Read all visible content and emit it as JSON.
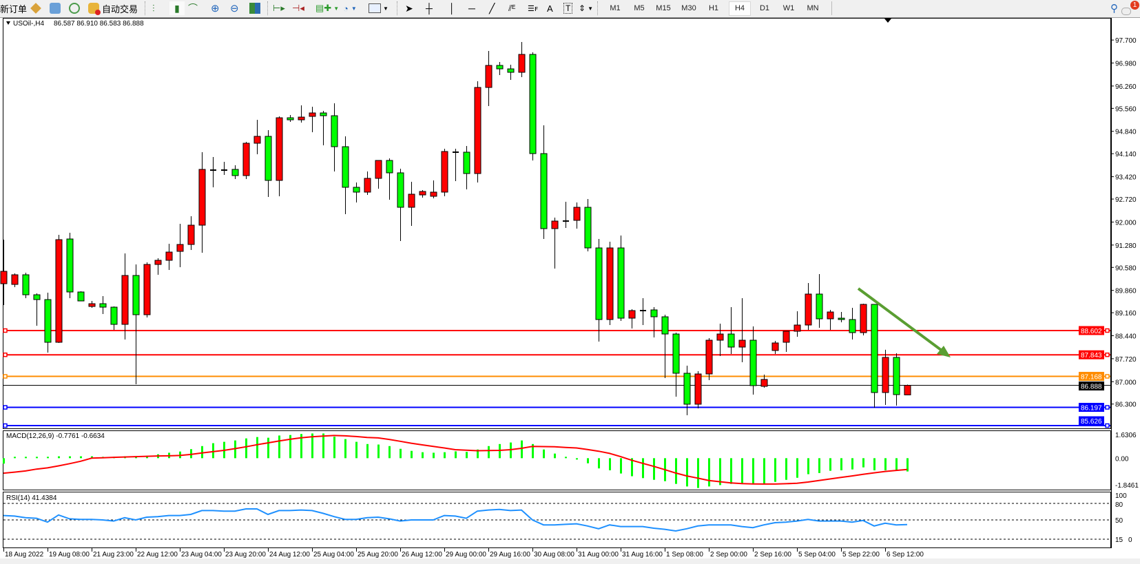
{
  "toolbar": {
    "new_order": "新订单",
    "auto_trading": "自动交易",
    "timeframes": [
      "M1",
      "M5",
      "M15",
      "M30",
      "H1",
      "H4",
      "D1",
      "W1",
      "MN"
    ],
    "active_timeframe": "H4",
    "notification_count": "1",
    "icons": [
      "new-order-icon",
      "market-watch-icon",
      "data-window-icon",
      "navigator-icon",
      "auto-trading-icon",
      "bar-chart-icon",
      "candlestick-icon",
      "line-chart-icon",
      "zoom-in-icon",
      "zoom-out-icon",
      "tile-windows-icon",
      "auto-scroll-icon",
      "chart-shift-icon",
      "templates-icon",
      "periods-icon",
      "indicators-icon",
      "cursor-icon",
      "crosshair-icon",
      "vertical-line-icon",
      "horizontal-line-icon",
      "trendline-icon",
      "fibonacci-expansion-icon",
      "fibonacci-retracement-icon",
      "text-icon",
      "text-label-icon",
      "arrows-icon",
      "search-icon",
      "notification-icon"
    ]
  },
  "chart_header": {
    "symbol": "USOil-,H4",
    "ohlc": "86.587 86.910 86.583 86.888"
  },
  "chart_data": {
    "type": "candlestick",
    "symbol": "USOil-",
    "timeframe": "H4",
    "colors": {
      "bull": "#ff0000",
      "bear": "#00ff00",
      "wick": "#000000"
    },
    "ylim": [
      85.626,
      97.7
    ],
    "price_ticks": [
      "97.700",
      "96.980",
      "96.260",
      "95.560",
      "94.840",
      "94.140",
      "93.420",
      "92.720",
      "92.000",
      "91.280",
      "90.580",
      "89.860",
      "89.160",
      "88.440",
      "87.720",
      "87.000",
      "86.300"
    ],
    "time_labels": [
      "18 Aug 2022",
      "19 Aug 08:00",
      "21 Aug 23:00",
      "22 Aug 12:00",
      "23 Aug 04:00",
      "23 Aug 20:00",
      "24 Aug 12:00",
      "25 Aug 04:00",
      "25 Aug 20:00",
      "26 Aug 12:00",
      "29 Aug 00:00",
      "29 Aug 16:00",
      "30 Aug 08:00",
      "31 Aug 00:00",
      "31 Aug 16:00",
      "1 Sep 08:00",
      "2 Sep 00:00",
      "2 Sep 16:00",
      "5 Sep 04:00",
      "5 Sep 22:00",
      "6 Sep 12:00"
    ],
    "time_label_every_n_bars": 4,
    "ohlc": [
      [
        90.069,
        91.449,
        89.4,
        90.457
      ],
      [
        90.047,
        90.392,
        89.961,
        90.349
      ],
      [
        90.349,
        90.414,
        89.616,
        89.723
      ],
      [
        89.723,
        89.766,
        88.753,
        89.572
      ],
      [
        89.572,
        89.788,
        87.912,
        88.235
      ],
      [
        88.235,
        91.6,
        88.214,
        91.449
      ],
      [
        91.47,
        91.664,
        89.616,
        89.81
      ],
      [
        89.81,
        89.831,
        89.529,
        89.529
      ],
      [
        89.357,
        89.529,
        89.314,
        89.443
      ],
      [
        89.443,
        89.68,
        89.12,
        89.335
      ],
      [
        89.335,
        89.357,
        88.624,
        88.796
      ],
      [
        88.796,
        91.017,
        88.322,
        90.327
      ],
      [
        90.327,
        90.672,
        86.92,
        89.098
      ],
      [
        89.098,
        90.737,
        89.012,
        90.672
      ],
      [
        90.672,
        90.866,
        90.349,
        90.802
      ],
      [
        90.802,
        91.319,
        90.5,
        91.06
      ],
      [
        91.082,
        91.945,
        90.586,
        91.298
      ],
      [
        91.298,
        92.182,
        91.125,
        91.902
      ],
      [
        91.902,
        94.188,
        91.039,
        93.649
      ],
      [
        93.627,
        94.037,
        93.088,
        93.627
      ],
      [
        93.627,
        93.886,
        93.476,
        93.627
      ],
      [
        93.649,
        93.778,
        93.347,
        93.455
      ],
      [
        93.455,
        94.511,
        93.347,
        94.468
      ],
      [
        94.468,
        95.201,
        94.123,
        94.684
      ],
      [
        94.684,
        94.878,
        92.786,
        93.304
      ],
      [
        93.304,
        95.309,
        92.807,
        95.266
      ],
      [
        95.266,
        95.352,
        95.137,
        95.201
      ],
      [
        95.201,
        95.654,
        95.115,
        95.287
      ],
      [
        95.309,
        95.611,
        94.813,
        95.417
      ],
      [
        95.417,
        95.481,
        94.403,
        95.33
      ],
      [
        95.33,
        95.719,
        93.584,
        94.36
      ],
      [
        94.36,
        94.684,
        92.247,
        93.088
      ],
      [
        93.088,
        93.239,
        92.613,
        92.937
      ],
      [
        92.937,
        93.584,
        92.85,
        93.368
      ],
      [
        93.368,
        93.929,
        93.044,
        93.929
      ],
      [
        93.929,
        93.994,
        92.699,
        93.541
      ],
      [
        93.541,
        93.67,
        91.406,
        92.462
      ],
      [
        92.462,
        93.26,
        91.88,
        92.872
      ],
      [
        92.85,
        93.001,
        92.764,
        92.958
      ],
      [
        92.807,
        93.304,
        92.742,
        92.937
      ],
      [
        92.937,
        94.295,
        92.807,
        94.209
      ],
      [
        94.188,
        94.295,
        93.282,
        94.188
      ],
      [
        94.188,
        94.382,
        93.023,
        93.519
      ],
      [
        93.519,
        96.409,
        93.239,
        96.215
      ],
      [
        96.215,
        97.358,
        95.632,
        96.905
      ],
      [
        96.905,
        97.013,
        96.603,
        96.797
      ],
      [
        96.797,
        96.926,
        96.452,
        96.689
      ],
      [
        96.689,
        97.638,
        96.538,
        97.25
      ],
      [
        97.25,
        97.315,
        93.929,
        94.144
      ],
      [
        94.144,
        95.029,
        91.47,
        91.794
      ],
      [
        91.794,
        92.139,
        90.543,
        92.031
      ],
      [
        92.031,
        92.635,
        91.815,
        92.031
      ],
      [
        92.053,
        92.613,
        91.794,
        92.462
      ],
      [
        92.462,
        92.721,
        91.082,
        91.19
      ],
      [
        91.19,
        91.47,
        88.257,
        88.947
      ],
      [
        88.947,
        91.384,
        88.775,
        91.19
      ],
      [
        91.19,
        91.578,
        88.904,
        88.99
      ],
      [
        88.99,
        89.271,
        88.667,
        89.227
      ],
      [
        89.227,
        89.616,
        88.775,
        89.227
      ],
      [
        89.249,
        89.335,
        88.386,
        89.033
      ],
      [
        89.033,
        89.098,
        87.114,
        88.494
      ],
      [
        88.494,
        88.537,
        86.532,
        87.265
      ],
      [
        87.265,
        87.502,
        85.949,
        86.295
      ],
      [
        86.295,
        87.33,
        86.165,
        87.243
      ],
      [
        87.243,
        88.365,
        87.049,
        88.3
      ],
      [
        88.3,
        88.818,
        87.804,
        88.494
      ],
      [
        88.494,
        89.335,
        87.869,
        88.084
      ],
      [
        88.084,
        89.616,
        87.61,
        88.3
      ],
      [
        88.3,
        88.731,
        86.596,
        86.877
      ],
      [
        86.855,
        87.222,
        86.812,
        87.071
      ],
      [
        87.977,
        88.278,
        87.869,
        88.214
      ],
      [
        88.235,
        88.58,
        87.934,
        88.58
      ],
      [
        88.58,
        89.206,
        88.408,
        88.775
      ],
      [
        88.775,
        90.09,
        88.624,
        89.745
      ],
      [
        89.745,
        90.37,
        88.688,
        88.969
      ],
      [
        88.969,
        89.249,
        88.624,
        89.184
      ],
      [
        88.99,
        89.184,
        88.861,
        88.947
      ],
      [
        88.947,
        89.314,
        88.322,
        88.537
      ],
      [
        88.537,
        89.443,
        88.451,
        89.422
      ],
      [
        89.422,
        89.422,
        86.187,
        86.661
      ],
      [
        86.661,
        88.0,
        86.273,
        87.761
      ],
      [
        87.761,
        87.89,
        86.251,
        86.596
      ],
      [
        86.587,
        86.91,
        86.583,
        86.888
      ]
    ],
    "current_price": {
      "value": 86.888,
      "label": "86.888",
      "color": "#000000"
    },
    "horizontal_lines": [
      {
        "value": 88.602,
        "label": "88.602",
        "color": "#ff0000"
      },
      {
        "value": 87.843,
        "label": "87.843",
        "color": "#ff0000"
      },
      {
        "value": 87.168,
        "label": "87.168",
        "color": "#ff8c00"
      },
      {
        "value": 86.197,
        "label": "86.197",
        "color": "#0000ff"
      },
      {
        "value": 85.626,
        "label": "85.626",
        "color": "#0000ff"
      }
    ],
    "trend_arrow_color": "#5a9e32",
    "macd": {
      "label": "MACD(12,26,9) -0.7761 -0.6634",
      "ylim": [
        -1.8461,
        1.6306
      ],
      "ticks": [
        "1.6306",
        "0.00",
        "-1.8461"
      ],
      "histogram_color": "#00ff00",
      "signal_color": "#ff0000",
      "histogram": [
        -0.32,
        0.02,
        0.02,
        0.02,
        0.02,
        0.11,
        0.11,
        0.11,
        0.11,
        0.05,
        0.05,
        0.11,
        0.05,
        0.14,
        0.23,
        0.32,
        0.39,
        0.53,
        0.71,
        0.88,
        0.96,
        1.04,
        1.16,
        1.24,
        1.2,
        1.33,
        1.36,
        1.42,
        1.45,
        1.45,
        1.26,
        1.12,
        0.96,
        0.83,
        0.8,
        0.71,
        0.55,
        0.43,
        0.35,
        0.32,
        0.35,
        0.4,
        0.37,
        0.51,
        0.71,
        0.83,
        0.92,
        1.04,
        0.83,
        0.51,
        0.27,
        0.07,
        -0.03,
        -0.3,
        -0.6,
        -0.71,
        -0.9,
        -1.06,
        -1.17,
        -1.27,
        -1.35,
        -1.51,
        -1.66,
        -1.75,
        -1.66,
        -1.58,
        -1.51,
        -1.51,
        -1.51,
        -1.51,
        -1.39,
        -1.27,
        -1.15,
        -0.94,
        -0.87,
        -0.74,
        -0.71,
        -0.66,
        -0.54,
        -0.71,
        -0.71,
        -0.71,
        -0.78
      ],
      "signal": [
        -0.88,
        -0.82,
        -0.75,
        -0.64,
        -0.57,
        -0.45,
        -0.32,
        -0.18,
        0.0,
        0.02,
        0.05,
        0.07,
        0.09,
        0.11,
        0.13,
        0.14,
        0.16,
        0.22,
        0.31,
        0.38,
        0.46,
        0.56,
        0.67,
        0.79,
        0.9,
        1.01,
        1.11,
        1.2,
        1.26,
        1.3,
        1.33,
        1.31,
        1.27,
        1.22,
        1.19,
        1.1,
        0.99,
        0.88,
        0.78,
        0.69,
        0.6,
        0.5,
        0.47,
        0.44,
        0.45,
        0.46,
        0.5,
        0.58,
        0.69,
        0.68,
        0.67,
        0.63,
        0.6,
        0.51,
        0.41,
        0.28,
        0.09,
        -0.12,
        -0.3,
        -0.48,
        -0.67,
        -0.87,
        -1.04,
        -1.17,
        -1.31,
        -1.38,
        -1.45,
        -1.49,
        -1.51,
        -1.52,
        -1.52,
        -1.5,
        -1.47,
        -1.4,
        -1.31,
        -1.22,
        -1.13,
        -1.04,
        -0.95,
        -0.86,
        -0.78,
        -0.72,
        -0.66
      ]
    },
    "rsi": {
      "label": "RSI(14) 41.4384",
      "ylim": [
        0,
        100
      ],
      "ticks": [
        "100",
        "80",
        "50",
        "15",
        "0"
      ],
      "levels": [
        80,
        50,
        15
      ],
      "color": "#1e90ff",
      "values": [
        58,
        57,
        54,
        53,
        46,
        59,
        52,
        51,
        51,
        50,
        48,
        54,
        50,
        55,
        56,
        58,
        58,
        60,
        67,
        67,
        66,
        66,
        70,
        70,
        60,
        67,
        67,
        68,
        67,
        62,
        56,
        51,
        51,
        54,
        55,
        52,
        48,
        50,
        50,
        50,
        58,
        57,
        53,
        66,
        68,
        69,
        67,
        68,
        50,
        41,
        41,
        42,
        43,
        39,
        34,
        41,
        38,
        38,
        38,
        35,
        33,
        30,
        34,
        39,
        41,
        41,
        41,
        38,
        36,
        41,
        45,
        46,
        48,
        51,
        48,
        48,
        48,
        46,
        49,
        39,
        44,
        41,
        41.44
      ]
    }
  }
}
